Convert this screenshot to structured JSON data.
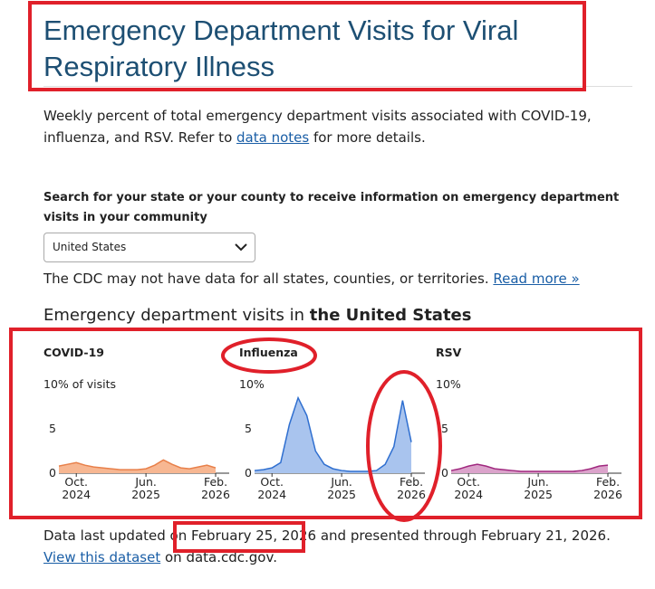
{
  "header": {
    "title": "Emergency Department Visits for Viral Respiratory Illness"
  },
  "intro": {
    "text": "Weekly percent of total emergency department visits associated with COVID-19, influenza, and RSV. Refer to ",
    "link": "data notes",
    "after": " for more details."
  },
  "search": {
    "label": "Search for your state or your county to receive information on emergency department visits in your community",
    "selected": "United States",
    "note": "The CDC may not have data for all states, counties, or territories. ",
    "note_link": "Read more »"
  },
  "section": {
    "heading": "Emergency department visits in ",
    "place": "the United States"
  },
  "footer": {
    "before": "Data last updated on ",
    "updated": "February 25, 2026",
    "middle": " and presented through February 21, 2026. ",
    "link": "View this dataset",
    "after": " on data.cdc.gov."
  },
  "chart_data": [
    {
      "type": "area",
      "title": "COVID-19",
      "color": "#e8804a",
      "fill": "#f7b792",
      "x": [
        "2024-08",
        "2024-09",
        "2024-10",
        "2024-11",
        "2024-12",
        "2025-01",
        "2025-02",
        "2025-03",
        "2025-04",
        "2025-05",
        "2025-06",
        "2025-07",
        "2025-08",
        "2025-09",
        "2025-10",
        "2025-11",
        "2025-12",
        "2026-01",
        "2026-02"
      ],
      "values": [
        0.8,
        1.0,
        1.2,
        0.9,
        0.7,
        0.6,
        0.5,
        0.4,
        0.4,
        0.4,
        0.5,
        0.9,
        1.5,
        1.0,
        0.6,
        0.5,
        0.7,
        0.9,
        0.6
      ],
      "xticks": [
        {
          "value": "2024-10",
          "label": [
            "Oct.",
            "2024"
          ]
        },
        {
          "value": "2025-06",
          "label": [
            "Jun.",
            "2025"
          ]
        },
        {
          "value": "2026-02",
          "label": [
            "Feb.",
            "2026"
          ]
        }
      ],
      "ylim": [
        0,
        10
      ],
      "yticks": [
        0,
        5,
        {
          "value": 10,
          "label": "10% of visits"
        }
      ]
    },
    {
      "type": "area",
      "title": "Influenza",
      "color": "#2f6fd0",
      "fill": "#a9c4ee",
      "x": [
        "2024-08",
        "2024-09",
        "2024-10",
        "2024-11",
        "2024-12",
        "2025-01",
        "2025-02",
        "2025-03",
        "2025-04",
        "2025-05",
        "2025-06",
        "2025-07",
        "2025-08",
        "2025-09",
        "2025-10",
        "2025-11",
        "2025-12",
        "2026-01",
        "2026-02"
      ],
      "values": [
        0.3,
        0.4,
        0.6,
        1.2,
        5.5,
        8.5,
        6.5,
        2.5,
        1.0,
        0.5,
        0.3,
        0.2,
        0.2,
        0.2,
        0.3,
        1.0,
        3.0,
        8.2,
        3.5
      ],
      "xticks": [
        {
          "value": "2024-10",
          "label": [
            "Oct.",
            "2024"
          ]
        },
        {
          "value": "2025-06",
          "label": [
            "Jun.",
            "2025"
          ]
        },
        {
          "value": "2026-02",
          "label": [
            "Feb.",
            "2026"
          ]
        }
      ],
      "ylim": [
        0,
        10
      ],
      "yticks": [
        0,
        5,
        {
          "value": 10,
          "label": "10%"
        }
      ]
    },
    {
      "type": "area",
      "title": "RSV",
      "color": "#a0287f",
      "fill": "#dba3cb",
      "x": [
        "2024-08",
        "2024-09",
        "2024-10",
        "2024-11",
        "2024-12",
        "2025-01",
        "2025-02",
        "2025-03",
        "2025-04",
        "2025-05",
        "2025-06",
        "2025-07",
        "2025-08",
        "2025-09",
        "2025-10",
        "2025-11",
        "2025-12",
        "2026-01",
        "2026-02"
      ],
      "values": [
        0.3,
        0.5,
        0.8,
        1.0,
        0.8,
        0.5,
        0.4,
        0.3,
        0.2,
        0.2,
        0.2,
        0.2,
        0.2,
        0.2,
        0.2,
        0.3,
        0.5,
        0.8,
        0.9
      ],
      "xticks": [
        {
          "value": "2024-10",
          "label": [
            "Oct.",
            "2024"
          ]
        },
        {
          "value": "2025-06",
          "label": [
            "Jun.",
            "2025"
          ]
        },
        {
          "value": "2026-02",
          "label": [
            "Feb.",
            "2026"
          ]
        }
      ],
      "ylim": [
        0,
        10
      ],
      "yticks": [
        0,
        5,
        {
          "value": 10,
          "label": "10%"
        }
      ]
    }
  ]
}
